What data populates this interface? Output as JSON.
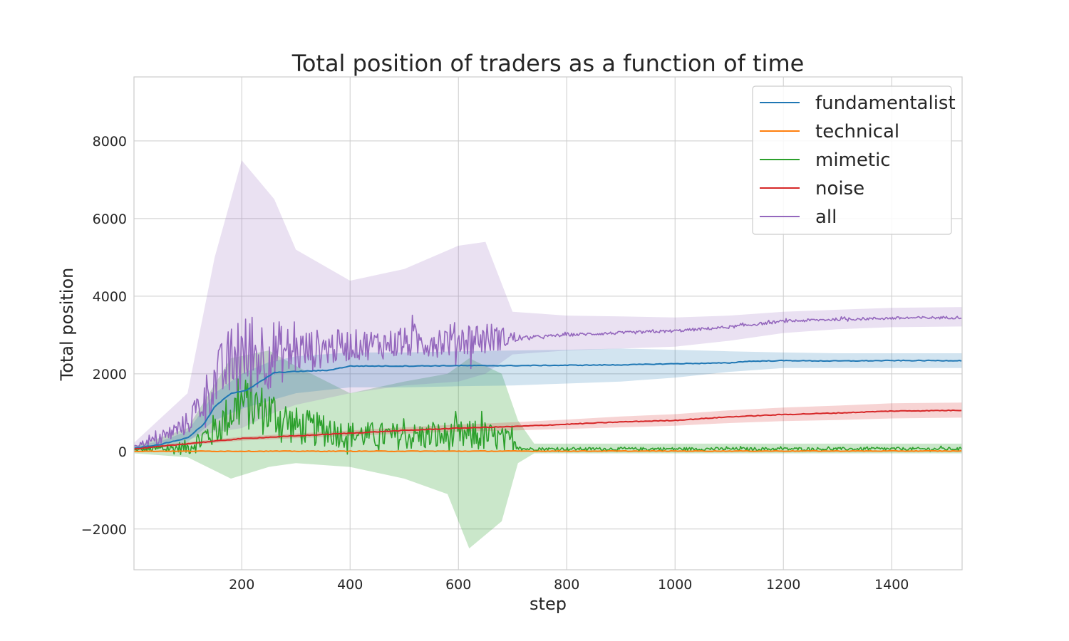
{
  "chart_data": {
    "type": "line",
    "title": "Total position of traders as a function of time",
    "xlabel": "step",
    "ylabel": "Total position",
    "xlim": [
      1,
      1530
    ],
    "ylim": [
      -3050,
      9650
    ],
    "x_ticks": [
      200,
      400,
      600,
      800,
      1000,
      1200,
      1400
    ],
    "x_tick_labels": [
      "200",
      "400",
      "600",
      "800",
      "1000",
      "1200",
      "1400"
    ],
    "y_ticks": [
      -2000,
      0,
      2000,
      4000,
      6000,
      8000
    ],
    "y_tick_labels": [
      "−2000",
      "0",
      "2000",
      "4000",
      "6000",
      "8000"
    ],
    "grid": true,
    "legend": {
      "placement": "top-right"
    },
    "series": [
      {
        "name": "fundamentalist",
        "color": "#1f77b4",
        "mean": [
          [
            1,
            80
          ],
          [
            50,
            180
          ],
          [
            100,
            350
          ],
          [
            130,
            700
          ],
          [
            150,
            1150
          ],
          [
            180,
            1500
          ],
          [
            210,
            1580
          ],
          [
            240,
            1850
          ],
          [
            260,
            2030
          ],
          [
            300,
            2060
          ],
          [
            360,
            2090
          ],
          [
            400,
            2200
          ],
          [
            500,
            2200
          ],
          [
            600,
            2210
          ],
          [
            700,
            2210
          ],
          [
            800,
            2220
          ],
          [
            900,
            2230
          ],
          [
            1000,
            2260
          ],
          [
            1100,
            2280
          ],
          [
            1130,
            2320
          ],
          [
            1200,
            2340
          ],
          [
            1300,
            2330
          ],
          [
            1400,
            2340
          ],
          [
            1530,
            2340
          ]
        ],
        "band": [
          [
            1,
            40,
            140
          ],
          [
            50,
            130,
            260
          ],
          [
            100,
            240,
            520
          ],
          [
            150,
            800,
            1500
          ],
          [
            200,
            1100,
            2000
          ],
          [
            250,
            1300,
            2300
          ],
          [
            300,
            1500,
            2450
          ],
          [
            400,
            1650,
            2550
          ],
          [
            500,
            1650,
            2550
          ],
          [
            600,
            1680,
            2580
          ],
          [
            700,
            1700,
            2600
          ],
          [
            800,
            1750,
            2620
          ],
          [
            900,
            1800,
            2650
          ],
          [
            1000,
            1900,
            2620
          ],
          [
            1100,
            2050,
            2580
          ],
          [
            1200,
            2150,
            2550
          ],
          [
            1300,
            2150,
            2530
          ],
          [
            1400,
            2150,
            2530
          ],
          [
            1530,
            2150,
            2530
          ]
        ],
        "band_alpha": 0.2
      },
      {
        "name": "technical",
        "color": "#ff7f0e",
        "mean": [
          [
            1,
            5
          ],
          [
            400,
            5
          ],
          [
            800,
            8
          ],
          [
            1200,
            10
          ],
          [
            1530,
            10
          ]
        ],
        "band": [
          [
            1,
            0,
            15
          ],
          [
            1530,
            0,
            25
          ]
        ],
        "band_alpha": 0.2
      },
      {
        "name": "mimetic",
        "color": "#2ca02c",
        "mean": [
          [
            1,
            30
          ],
          [
            100,
            80
          ],
          [
            150,
            500
          ],
          [
            200,
            1200
          ],
          [
            260,
            900
          ],
          [
            300,
            600
          ],
          [
            400,
            400
          ],
          [
            500,
            350
          ],
          [
            600,
            350
          ],
          [
            650,
            350
          ],
          [
            700,
            250
          ],
          [
            720,
            60
          ],
          [
            1530,
            60
          ]
        ],
        "noise_amplitude": [
          [
            1,
            50
          ],
          [
            100,
            400
          ],
          [
            150,
            900
          ],
          [
            200,
            1400
          ],
          [
            260,
            1300
          ],
          [
            300,
            1000
          ],
          [
            400,
            700
          ],
          [
            500,
            700
          ],
          [
            600,
            800
          ],
          [
            650,
            800
          ],
          [
            700,
            500
          ],
          [
            720,
            80
          ],
          [
            1530,
            80
          ]
        ],
        "band": [
          [
            1,
            -50,
            120
          ],
          [
            100,
            -150,
            600
          ],
          [
            180,
            -700,
            2400
          ],
          [
            250,
            -400,
            2600
          ],
          [
            300,
            -300,
            2200
          ],
          [
            400,
            -400,
            1500
          ],
          [
            500,
            -700,
            1800
          ],
          [
            580,
            -1100,
            2000
          ],
          [
            620,
            -2500,
            2400
          ],
          [
            680,
            -1800,
            2000
          ],
          [
            710,
            -300,
            800
          ],
          [
            740,
            -50,
            200
          ],
          [
            1530,
            -50,
            200
          ]
        ],
        "band_alpha": 0.25
      },
      {
        "name": "noise",
        "color": "#d62728",
        "mean": [
          [
            1,
            60
          ],
          [
            100,
            200
          ],
          [
            200,
            330
          ],
          [
            300,
            400
          ],
          [
            400,
            470
          ],
          [
            500,
            540
          ],
          [
            600,
            600
          ],
          [
            700,
            640
          ],
          [
            800,
            700
          ],
          [
            900,
            760
          ],
          [
            1000,
            800
          ],
          [
            1100,
            890
          ],
          [
            1200,
            950
          ],
          [
            1300,
            990
          ],
          [
            1400,
            1040
          ],
          [
            1530,
            1060
          ]
        ],
        "band": [
          [
            1,
            30,
            90
          ],
          [
            100,
            160,
            240
          ],
          [
            200,
            280,
            380
          ],
          [
            300,
            340,
            460
          ],
          [
            400,
            400,
            540
          ],
          [
            500,
            460,
            620
          ],
          [
            600,
            510,
            690
          ],
          [
            700,
            540,
            750
          ],
          [
            800,
            580,
            820
          ],
          [
            900,
            620,
            900
          ],
          [
            1000,
            660,
            960
          ],
          [
            1100,
            730,
            1060
          ],
          [
            1200,
            780,
            1130
          ],
          [
            1300,
            810,
            1180
          ],
          [
            1400,
            850,
            1240
          ],
          [
            1530,
            870,
            1260
          ]
        ],
        "band_alpha": 0.2
      },
      {
        "name": "all",
        "color": "#9467bd",
        "mean": [
          [
            1,
            150
          ],
          [
            50,
            300
          ],
          [
            100,
            700
          ],
          [
            150,
            1700
          ],
          [
            180,
            2200
          ],
          [
            220,
            2400
          ],
          [
            260,
            2450
          ],
          [
            300,
            2500
          ],
          [
            400,
            2700
          ],
          [
            500,
            2750
          ],
          [
            600,
            2850
          ],
          [
            700,
            2900
          ],
          [
            800,
            3000
          ],
          [
            900,
            3050
          ],
          [
            1000,
            3100
          ],
          [
            1100,
            3200
          ],
          [
            1200,
            3350
          ],
          [
            1300,
            3400
          ],
          [
            1400,
            3430
          ],
          [
            1530,
            3450
          ]
        ],
        "noise_amplitude": [
          [
            1,
            80
          ],
          [
            100,
            600
          ],
          [
            150,
            1500
          ],
          [
            200,
            2200
          ],
          [
            260,
            1800
          ],
          [
            300,
            1200
          ],
          [
            400,
            800
          ],
          [
            500,
            800
          ],
          [
            600,
            900
          ],
          [
            650,
            900
          ],
          [
            700,
            400
          ],
          [
            720,
            80
          ],
          [
            1530,
            70
          ]
        ],
        "band": [
          [
            1,
            80,
            220
          ],
          [
            100,
            300,
            1500
          ],
          [
            150,
            500,
            5000
          ],
          [
            200,
            600,
            7500
          ],
          [
            260,
            1000,
            6500
          ],
          [
            300,
            1200,
            5200
          ],
          [
            400,
            1500,
            4400
          ],
          [
            500,
            1700,
            4700
          ],
          [
            600,
            1800,
            5300
          ],
          [
            650,
            2000,
            5400
          ],
          [
            700,
            2500,
            3600
          ],
          [
            800,
            2600,
            3500
          ],
          [
            900,
            2650,
            3480
          ],
          [
            1000,
            2700,
            3450
          ],
          [
            1100,
            2850,
            3500
          ],
          [
            1200,
            3050,
            3600
          ],
          [
            1300,
            3150,
            3650
          ],
          [
            1400,
            3200,
            3700
          ],
          [
            1530,
            3220,
            3720
          ]
        ],
        "band_alpha": 0.2
      }
    ]
  }
}
